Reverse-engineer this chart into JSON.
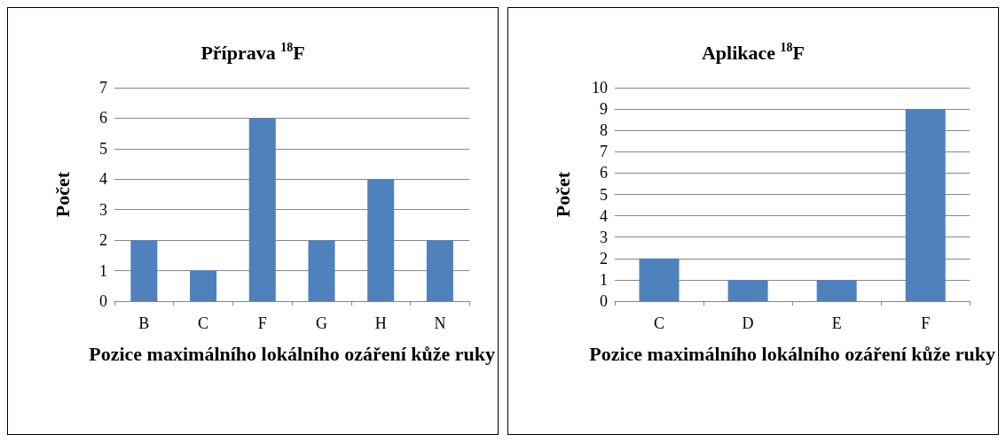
{
  "chart_data": [
    {
      "type": "bar",
      "title": "Příprava $^{18}$F",
      "xlabel": "Pozice maximálního lokálního ozáření kůže ruky",
      "ylabel": "Počet",
      "categories": [
        "B",
        "C",
        "F",
        "G",
        "H",
        "N"
      ],
      "values": [
        2,
        1,
        6,
        2,
        4,
        2
      ],
      "color": "#4f81bd",
      "ylim": [
        0,
        7
      ],
      "yticks": [
        0,
        1,
        2,
        3,
        4,
        5,
        6,
        7
      ],
      "grid": "y"
    },
    {
      "type": "bar",
      "title": "Aplikace $^{18}$F",
      "xlabel": "Pozice maximálního lokálního ozáření kůže ruky",
      "ylabel": "Počet",
      "categories": [
        "C",
        "D",
        "E",
        "F"
      ],
      "values": [
        2,
        1,
        1,
        9
      ],
      "color": "#4f81bd",
      "ylim": [
        0,
        10
      ],
      "yticks": [
        0,
        1,
        2,
        3,
        4,
        5,
        6,
        7,
        8,
        9,
        10
      ],
      "grid": "y"
    }
  ]
}
